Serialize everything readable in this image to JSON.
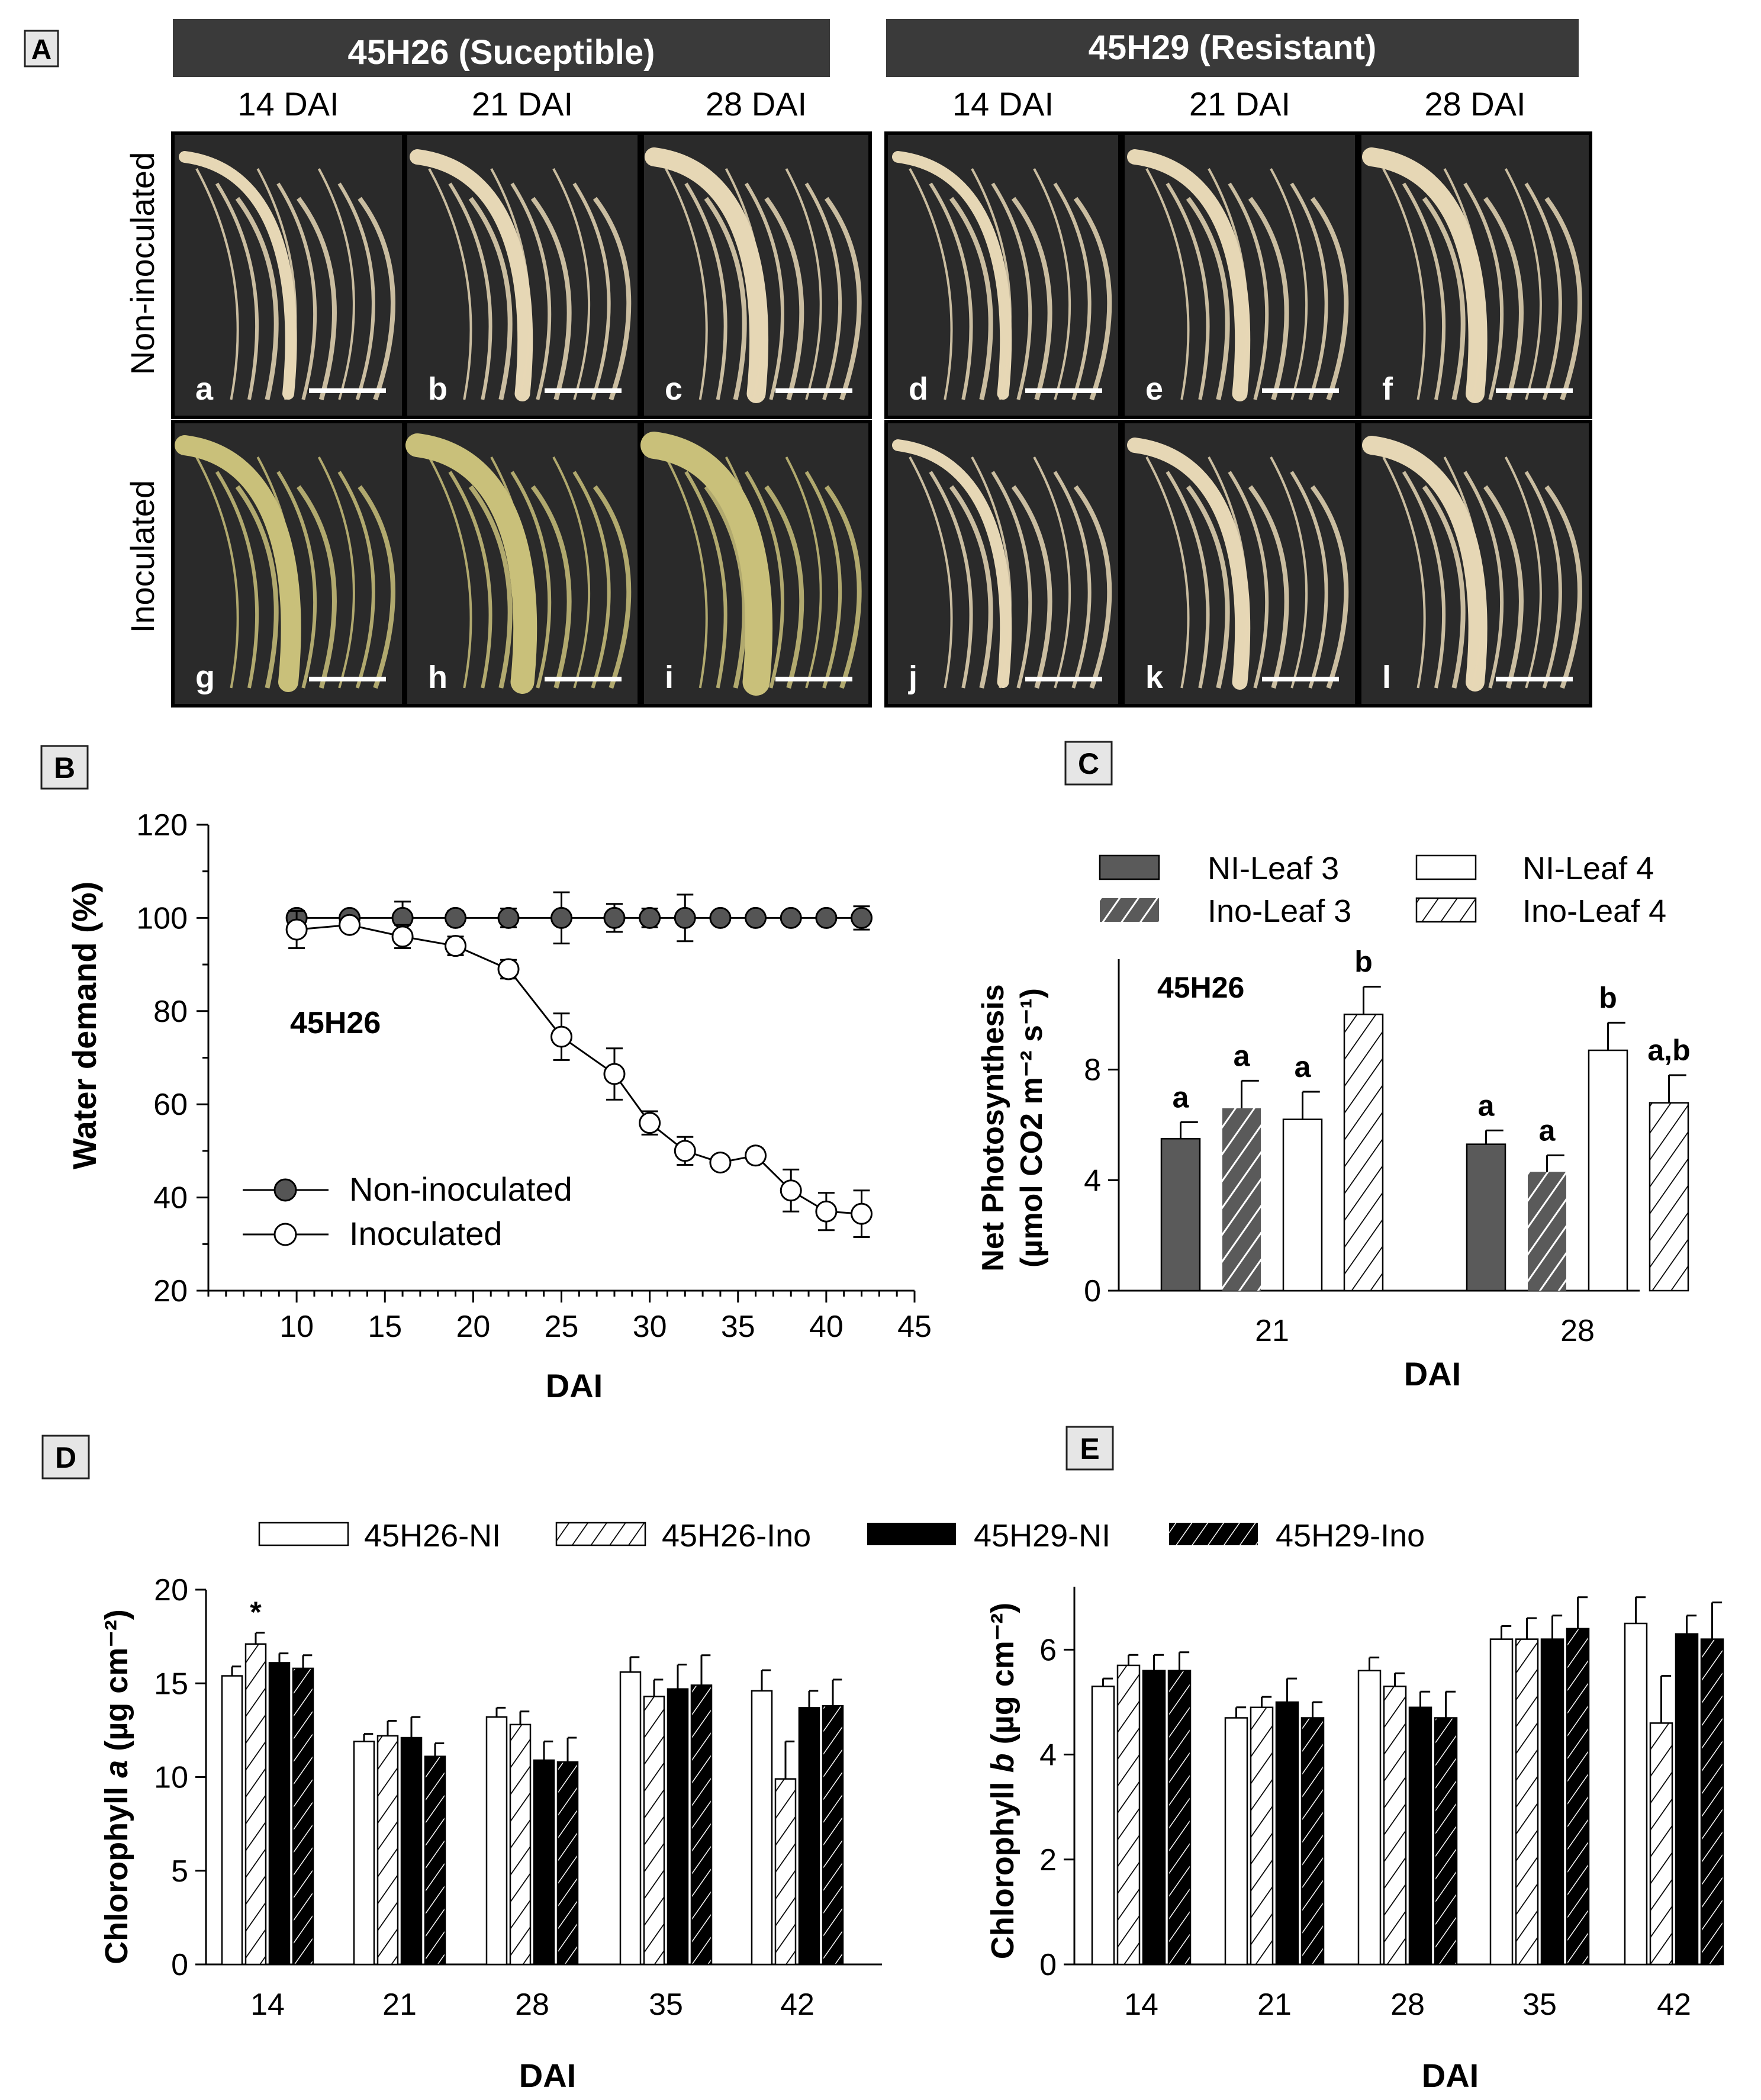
{
  "panels": {
    "A": "A",
    "B": "B",
    "C": "C",
    "D": "D",
    "E": "E"
  },
  "panel_a": {
    "groups": [
      {
        "label": "45H26 (Suceptible)"
      },
      {
        "label": "45H29 (Resistant)"
      }
    ],
    "columns": [
      "14 DAI",
      "21 DAI",
      "28 DAI",
      "14 DAI",
      "21 DAI",
      "28 DAI"
    ],
    "rows": [
      "Non-inoculated",
      "Inoculated"
    ],
    "photo_letters": [
      "a",
      "b",
      "c",
      "d",
      "e",
      "f",
      "g",
      "h",
      "i",
      "j",
      "k",
      "l"
    ],
    "colors": {
      "header_bg": "#3a3a3a",
      "header_text": "#ffffff",
      "photo_bg": "#2a2a2a",
      "root": "#e6d7b5",
      "root_diseased": "#c9c07a"
    }
  },
  "chart_data": [
    {
      "id": "B",
      "type": "line",
      "annotation": "45H26",
      "xlabel": "DAI",
      "ylabel": "Water demand (%)",
      "xlim": [
        5,
        45
      ],
      "ylim": [
        20,
        120
      ],
      "xticks": [
        10,
        15,
        20,
        25,
        30,
        35,
        40,
        45
      ],
      "yticks": [
        20,
        40,
        60,
        80,
        100,
        120
      ],
      "series": [
        {
          "name": "Non-inoculated",
          "color": "#555555",
          "x": [
            10,
            13,
            16,
            19,
            22,
            25,
            28,
            30,
            32,
            34,
            36,
            38,
            40,
            42
          ],
          "y": [
            100,
            100,
            100,
            100,
            100,
            100,
            100,
            100,
            100,
            100,
            100,
            100,
            100,
            100
          ],
          "err": [
            1,
            1,
            3.5,
            1.5,
            2,
            5.5,
            3,
            2,
            5,
            1,
            1,
            1,
            1,
            2.5
          ]
        },
        {
          "name": "Inoculated",
          "color": "#ffffff",
          "x": [
            10,
            13,
            16,
            19,
            22,
            25,
            28,
            30,
            32,
            34,
            36,
            38,
            40,
            42
          ],
          "y": [
            97.5,
            98.5,
            96,
            94,
            89,
            74.5,
            66.5,
            56,
            50,
            47.5,
            49,
            41.5,
            37,
            36.5
          ],
          "err": [
            4,
            1,
            2.5,
            2,
            2,
            5,
            5.5,
            2.5,
            3,
            1,
            1.5,
            4.5,
            4,
            5
          ]
        }
      ]
    },
    {
      "id": "C",
      "type": "bar",
      "annotation": "45H26",
      "xlabel": "DAI",
      "ylabel_line1": "Net Photosynthesis",
      "ylabel_line2": "(µmol CO2 m⁻² s⁻¹)",
      "categories": [
        "21",
        "28"
      ],
      "ylim": [
        0,
        12
      ],
      "yticks": [
        "0",
        "4",
        "8"
      ],
      "series": [
        {
          "name": "NI-Leaf 3",
          "fill": "#5a5a5a",
          "hatch": false,
          "values": [
            5.5,
            5.3
          ],
          "err": [
            0.6,
            0.5
          ],
          "letters": [
            "a",
            "a"
          ]
        },
        {
          "name": "Ino-Leaf 3",
          "fill": "#5a5a5a",
          "hatch": true,
          "values": [
            6.6,
            4.3
          ],
          "err": [
            1.0,
            0.6
          ],
          "letters": [
            "a",
            "a"
          ]
        },
        {
          "name": "NI-Leaf 4",
          "fill": "#ffffff",
          "hatch": false,
          "values": [
            6.2,
            8.7
          ],
          "err": [
            1.0,
            1.0
          ],
          "letters": [
            "a",
            "b"
          ]
        },
        {
          "name": "Ino-Leaf 4",
          "fill": "#ffffff",
          "hatch": true,
          "values": [
            10.0,
            6.8
          ],
          "err": [
            1.0,
            1.0
          ],
          "letters": [
            "b",
            "a,b"
          ]
        }
      ]
    },
    {
      "id": "D",
      "type": "bar",
      "xlabel": "DAI",
      "ylabel_pre": "Chlorophyll ",
      "ylabel_italic": "a",
      "ylabel_post": " (µg cm⁻²)",
      "categories": [
        "14",
        "21",
        "28",
        "35",
        "42"
      ],
      "ylim": [
        0,
        20
      ],
      "yticks": [
        "0",
        "5",
        "10",
        "15",
        "20"
      ],
      "star": "*",
      "series": [
        {
          "name": "45H26-NI",
          "fill": "#ffffff",
          "hatch": false,
          "values": [
            15.4,
            11.9,
            13.2,
            15.6,
            14.6
          ],
          "err": [
            0.5,
            0.4,
            0.5,
            0.8,
            1.1
          ]
        },
        {
          "name": "45H26-Ino",
          "fill": "#ffffff",
          "hatch": true,
          "values": [
            17.1,
            12.2,
            12.8,
            14.3,
            9.9
          ],
          "err": [
            0.6,
            0.8,
            0.7,
            0.9,
            2.0
          ]
        },
        {
          "name": "45H29-NI",
          "fill": "#000000",
          "hatch": false,
          "values": [
            16.1,
            12.1,
            10.9,
            14.7,
            13.7
          ],
          "err": [
            0.5,
            1.1,
            1.0,
            1.3,
            0.9
          ]
        },
        {
          "name": "45H29-Ino",
          "fill": "#000000",
          "hatch": true,
          "values": [
            15.8,
            11.1,
            10.8,
            14.9,
            13.8
          ],
          "err": [
            0.7,
            0.7,
            1.3,
            1.6,
            1.4
          ]
        }
      ]
    },
    {
      "id": "E",
      "type": "bar",
      "xlabel": "DAI",
      "ylabel_pre": "Chlorophyll ",
      "ylabel_italic": "b",
      "ylabel_post": " (µg cm⁻²)",
      "categories": [
        "14",
        "21",
        "28",
        "35",
        "42"
      ],
      "ylim": [
        0,
        7.2
      ],
      "yticks": [
        "0",
        "2",
        "4",
        "6"
      ],
      "series": [
        {
          "name": "45H26-NI",
          "fill": "#ffffff",
          "hatch": false,
          "values": [
            5.3,
            4.7,
            5.6,
            6.2,
            6.5
          ],
          "err": [
            0.15,
            0.2,
            0.25,
            0.25,
            0.5
          ]
        },
        {
          "name": "45H26-Ino",
          "fill": "#ffffff",
          "hatch": true,
          "values": [
            5.7,
            4.9,
            5.3,
            6.2,
            4.6
          ],
          "err": [
            0.2,
            0.2,
            0.25,
            0.4,
            0.9
          ]
        },
        {
          "name": "45H29-NI",
          "fill": "#000000",
          "hatch": false,
          "values": [
            5.6,
            5.0,
            4.9,
            6.2,
            6.3
          ],
          "err": [
            0.3,
            0.45,
            0.3,
            0.45,
            0.35
          ]
        },
        {
          "name": "45H29-Ino",
          "fill": "#000000",
          "hatch": true,
          "values": [
            5.6,
            4.7,
            4.7,
            6.4,
            6.2
          ],
          "err": [
            0.35,
            0.3,
            0.5,
            0.6,
            0.7
          ]
        }
      ]
    }
  ],
  "legend_de": [
    "45H26-NI",
    "45H26-Ino",
    "45H29-NI",
    "45H29-Ino"
  ]
}
